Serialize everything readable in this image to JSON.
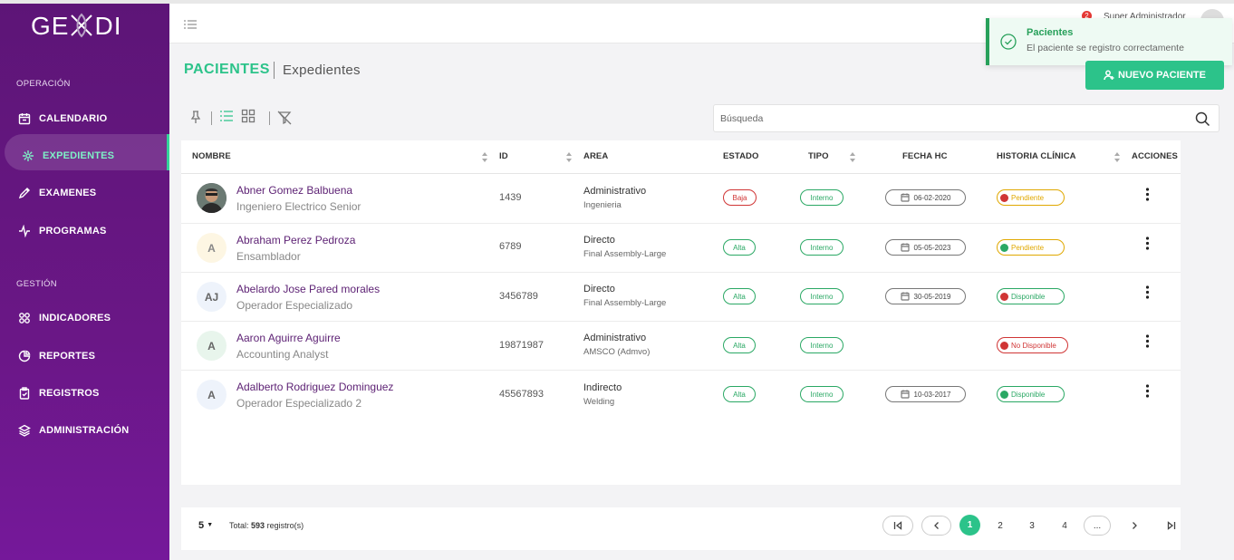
{
  "app": {
    "logo_text_left": "GE",
    "logo_text_right": "DI"
  },
  "sidebar": {
    "sections": [
      "OPERACIÓN",
      "GESTIÓN"
    ],
    "items": [
      {
        "label": "CALENDARIO",
        "icon": "calendar-icon"
      },
      {
        "label": "EXPEDIENTES",
        "icon": "medical-icon",
        "active": true
      },
      {
        "label": "EXAMENES",
        "icon": "pencil-icon"
      },
      {
        "label": "PROGRAMAS",
        "icon": "pulse-icon"
      },
      {
        "label": "INDICADORES",
        "icon": "grid-icon"
      },
      {
        "label": "REPORTES",
        "icon": "pie-chart-icon"
      },
      {
        "label": "REGISTROS",
        "icon": "clipboard-icon"
      },
      {
        "label": "ADMINISTRACIÓN",
        "icon": "layers-icon"
      }
    ]
  },
  "topbar": {
    "user_name": "Super Administrador",
    "notification_count": "2"
  },
  "toast": {
    "title": "Pacientes",
    "message": "El paciente se registro correctamente"
  },
  "page": {
    "title": "PACIENTES",
    "subtitle": "Expedientes",
    "new_button": "NUEVO PACIENTE"
  },
  "search": {
    "placeholder": "Búsqueda"
  },
  "table": {
    "columns": [
      "NOMBRE",
      "ID",
      "AREA",
      "ESTADO",
      "TIPO",
      "FECHA HC",
      "HISTORIA CLÍNICA",
      "ACCIONES"
    ],
    "rows": [
      {
        "initials": "",
        "photo": true,
        "name": "Abner Gomez Balbuena",
        "role": "Ingeniero Electrico Senior",
        "id": "1439",
        "area": "Administrativo",
        "area_sub": "Ingenieria",
        "estado": "Baja",
        "tipo": "Interno",
        "fecha": "06-02-2020",
        "hc": "Pendiente"
      },
      {
        "initials": "A",
        "name": "Abraham Perez Pedroza",
        "role": "Ensamblador",
        "id": "6789",
        "area": "Directo",
        "area_sub": "Final Assembly-Large",
        "estado": "Alta",
        "tipo": "Interno",
        "fecha": "05-05-2023",
        "hc": "Pendiente"
      },
      {
        "initials": "AJ",
        "name": "Abelardo Jose Pared morales",
        "role": "Operador Especializado",
        "id": "3456789",
        "area": "Directo",
        "area_sub": "Final Assembly-Large",
        "estado": "Alta",
        "tipo": "Interno",
        "fecha": "30-05-2019",
        "hc": "Disponible"
      },
      {
        "initials": "A",
        "name": "Aaron Aguirre Aguirre",
        "role": "Accounting Analyst",
        "id": "19871987",
        "area": "Administrativo",
        "area_sub": "AMSCO (Admvo)",
        "estado": "Alta",
        "tipo": "Interno",
        "fecha": "",
        "hc": "No Disponible"
      },
      {
        "initials": "A",
        "name": "Adalberto Rodriguez Dominguez",
        "role": "Operador Especializado 2",
        "id": "45567893",
        "area": "Indirecto",
        "area_sub": "Welding",
        "estado": "Alta",
        "tipo": "Interno",
        "fecha": "10-03-2017",
        "hc": "Disponible"
      }
    ]
  },
  "footer": {
    "page_size": "5",
    "total_label": "Total:",
    "total_count": "593",
    "total_suffix": "registro(s)",
    "pages": [
      "1",
      "2",
      "3",
      "4",
      "..."
    ]
  },
  "colors": {
    "accent": "#2cc38a",
    "sidebar": "#6a1786",
    "danger": "#d03535",
    "warning": "#e0a800",
    "success": "#2aa864"
  }
}
